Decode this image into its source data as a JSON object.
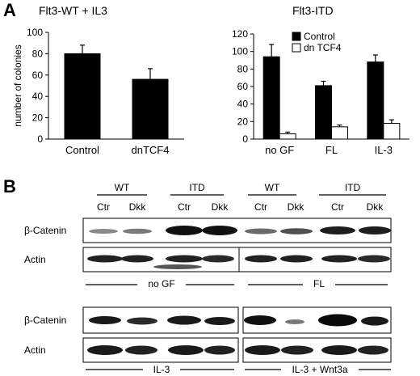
{
  "panel_a_label": "A",
  "panel_b_label": "B",
  "chart_data": [
    {
      "type": "bar",
      "title": "Flt3-WT + IL3",
      "ylabel": "number of colonies",
      "categories": [
        "Control",
        "dnTCF4"
      ],
      "series": [
        {
          "values": [
            80,
            56
          ],
          "errors": [
            8,
            10
          ],
          "color": "#000000"
        }
      ],
      "ylim": [
        0,
        100
      ],
      "yticks": [
        0,
        20,
        40,
        60,
        80,
        100
      ]
    },
    {
      "type": "bar",
      "title": "Flt3-ITD",
      "categories": [
        "no GF",
        "FL",
        "IL-3"
      ],
      "series": [
        {
          "name": "Control",
          "values": [
            94,
            61,
            88
          ],
          "errors": [
            14,
            5,
            8
          ],
          "color": "#000000"
        },
        {
          "name": "dn TCF4",
          "values": [
            6,
            14,
            18
          ],
          "errors": [
            2,
            2,
            4
          ],
          "color": "#ffffff"
        }
      ],
      "ylim": [
        0,
        120
      ],
      "yticks": [
        0,
        20,
        40,
        60,
        80,
        100,
        120
      ],
      "legend": "top-right"
    }
  ],
  "blot": {
    "top": {
      "groups": [
        "WT",
        "ITD",
        "WT",
        "ITD"
      ],
      "lanes": [
        "Ctr",
        "Dkk",
        "Ctr",
        "Dkk",
        "Ctr",
        "Dkk",
        "Ctr",
        "Dkk"
      ],
      "rows": [
        "β-Catenin",
        "Actin"
      ],
      "conditions": [
        "no GF",
        "FL"
      ]
    },
    "bottom": {
      "rows": [
        "β-Catenin",
        "Actin"
      ],
      "conditions": [
        "IL-3",
        "IL-3 + Wnt3a"
      ]
    }
  }
}
